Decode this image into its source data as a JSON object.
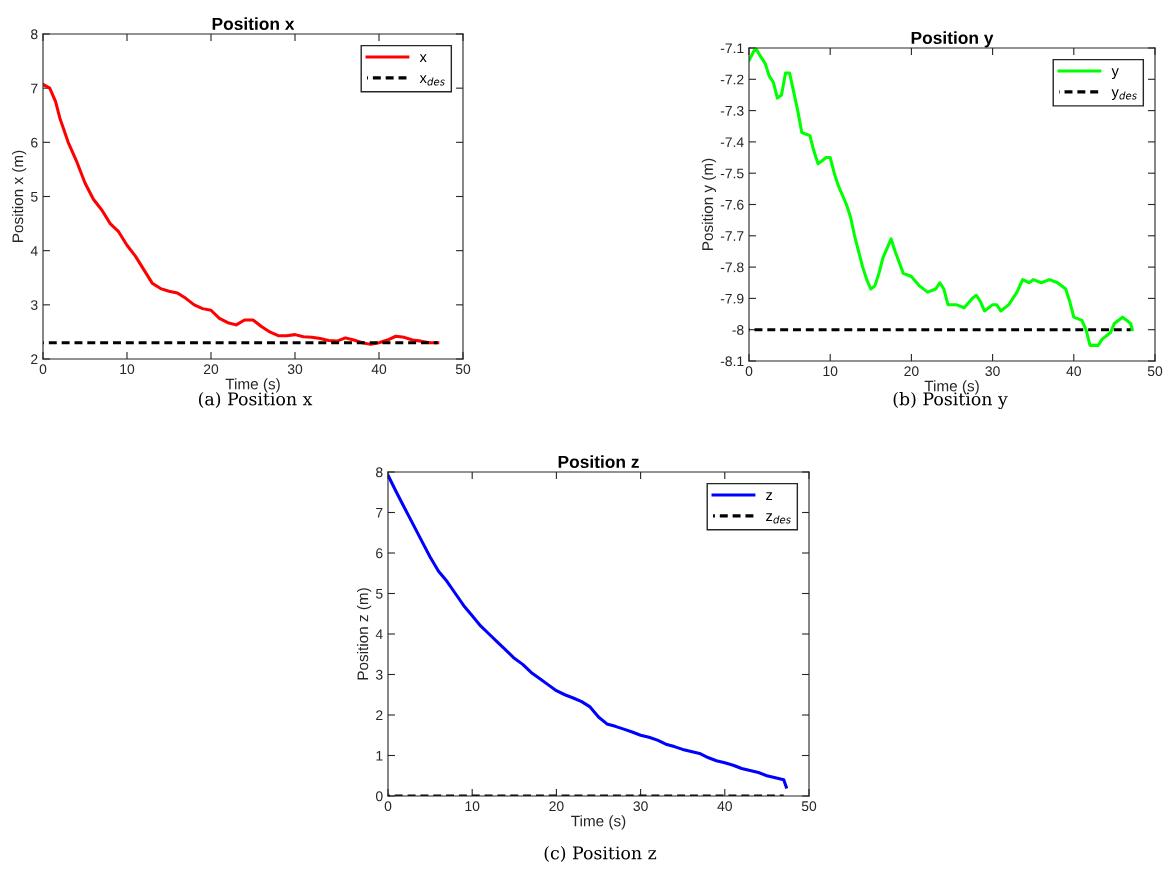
{
  "chart_data": [
    {
      "type": "line",
      "title": "Position x",
      "xlabel": "Time (s)",
      "ylabel": "Position x (m)",
      "xlim": [
        0,
        50
      ],
      "ylim": [
        2,
        8
      ],
      "xticks": [
        0,
        10,
        20,
        30,
        40,
        50
      ],
      "yticks": [
        2,
        3,
        4,
        5,
        6,
        7,
        8
      ],
      "grid": false,
      "legend": "top right",
      "annotations": [
        "(a) Position x"
      ],
      "series": [
        {
          "name": "x",
          "color": "#ff0000",
          "line_style": "solid",
          "x": [
            0,
            0.8,
            1.5,
            2,
            3,
            4,
            5,
            6,
            7,
            8,
            9,
            10,
            11,
            12,
            13,
            14,
            15,
            16,
            17,
            18,
            19,
            20,
            21,
            22,
            23,
            24,
            25,
            26,
            27,
            28,
            29,
            30,
            31,
            32,
            33,
            34,
            35,
            36,
            37,
            38,
            39,
            40,
            41,
            42,
            43,
            44,
            45,
            46,
            47
          ],
          "values": [
            7.07,
            7.0,
            6.75,
            6.45,
            6.0,
            5.65,
            5.25,
            4.95,
            4.75,
            4.5,
            4.35,
            4.1,
            3.9,
            3.65,
            3.4,
            3.3,
            3.25,
            3.22,
            3.12,
            3.0,
            2.93,
            2.9,
            2.75,
            2.67,
            2.63,
            2.72,
            2.72,
            2.6,
            2.5,
            2.43,
            2.43,
            2.45,
            2.41,
            2.4,
            2.38,
            2.34,
            2.33,
            2.39,
            2.35,
            2.3,
            2.27,
            2.3,
            2.35,
            2.42,
            2.4,
            2.35,
            2.33,
            2.3,
            2.3
          ]
        },
        {
          "name": "x$_{des}$",
          "color": "#000000",
          "line_style": "dashed",
          "x": [
            0,
            47
          ],
          "values": [
            2.3,
            2.3
          ]
        }
      ]
    },
    {
      "type": "line",
      "title": "Position y",
      "xlabel": "Time (s)",
      "ylabel": "Position y (m)",
      "xlim": [
        0,
        50
      ],
      "ylim": [
        -8.1,
        -7.1
      ],
      "xticks": [
        0,
        10,
        20,
        30,
        40,
        50
      ],
      "yticks": [
        -8.1,
        -8,
        -7.9,
        -7.8,
        -7.7,
        -7.6,
        -7.5,
        -7.4,
        -7.3,
        -7.2,
        -7.1
      ],
      "grid": false,
      "legend": "top right",
      "annotations": [
        "(b) Position y"
      ],
      "series": [
        {
          "name": "y",
          "color": "#00ff00",
          "line_style": "solid",
          "x": [
            0,
            0.8,
            1.5,
            2,
            2.5,
            3,
            3.5,
            4,
            4.5,
            5,
            5.5,
            6,
            6.5,
            7.5,
            8,
            8.5,
            9,
            9.5,
            10,
            10.5,
            11,
            12,
            12.5,
            13,
            14,
            14.5,
            15,
            15.5,
            16,
            16.5,
            17,
            17.5,
            18,
            19,
            20,
            21,
            22,
            23,
            23.5,
            24,
            24.5,
            25.5,
            26.5,
            27.5,
            28,
            28.5,
            29,
            30,
            30.5,
            31,
            32,
            33,
            33.7,
            34.5,
            35,
            36,
            37,
            38,
            39,
            39.5,
            40,
            41,
            41.5,
            42,
            43,
            43.5,
            44.5,
            45,
            46,
            46.5,
            47,
            47.2
          ],
          "values": [
            -7.14,
            -7.1,
            -7.13,
            -7.15,
            -7.19,
            -7.21,
            -7.26,
            -7.25,
            -7.18,
            -7.18,
            -7.24,
            -7.3,
            -7.37,
            -7.38,
            -7.43,
            -7.47,
            -7.46,
            -7.45,
            -7.45,
            -7.5,
            -7.54,
            -7.6,
            -7.64,
            -7.7,
            -7.8,
            -7.84,
            -7.87,
            -7.86,
            -7.82,
            -7.77,
            -7.74,
            -7.71,
            -7.75,
            -7.82,
            -7.83,
            -7.86,
            -7.88,
            -7.87,
            -7.85,
            -7.87,
            -7.92,
            -7.92,
            -7.93,
            -7.9,
            -7.89,
            -7.91,
            -7.94,
            -7.92,
            -7.92,
            -7.94,
            -7.92,
            -7.88,
            -7.84,
            -7.85,
            -7.84,
            -7.85,
            -7.84,
            -7.85,
            -7.87,
            -7.91,
            -7.96,
            -7.97,
            -8.0,
            -8.05,
            -8.05,
            -8.03,
            -8.01,
            -7.98,
            -7.96,
            -7.97,
            -7.98,
            -8.0
          ]
        },
        {
          "name": "y$_{des}$",
          "color": "#000000",
          "line_style": "dashed",
          "x": [
            0,
            47
          ],
          "values": [
            -8,
            -8
          ]
        }
      ]
    },
    {
      "type": "line",
      "title": "Position z",
      "xlabel": "Time (s)",
      "ylabel": "Position z (m)",
      "xlim": [
        0,
        50
      ],
      "ylim": [
        0,
        8
      ],
      "xticks": [
        0,
        10,
        20,
        30,
        40,
        50
      ],
      "yticks": [
        0,
        1,
        2,
        3,
        4,
        5,
        6,
        7,
        8
      ],
      "grid": false,
      "legend": "top right",
      "annotations": [
        "(c) Position z"
      ],
      "series": [
        {
          "name": "z",
          "color": "#0000ff",
          "line_style": "solid",
          "x": [
            0,
            1,
            2,
            3,
            4,
            5,
            6,
            7,
            8,
            9,
            10,
            11,
            12,
            13,
            14,
            15,
            16,
            17,
            18,
            19,
            20,
            21,
            22,
            23,
            24,
            25,
            26,
            27,
            28,
            29,
            30,
            31,
            32,
            33,
            34,
            35,
            36,
            37,
            38,
            39,
            40,
            41,
            42,
            43,
            44,
            45,
            46,
            47,
            47.3
          ],
          "values": [
            7.92,
            7.5,
            7.1,
            6.7,
            6.3,
            5.9,
            5.55,
            5.3,
            5.0,
            4.7,
            4.45,
            4.2,
            4.0,
            3.8,
            3.6,
            3.4,
            3.25,
            3.05,
            2.9,
            2.75,
            2.6,
            2.5,
            2.42,
            2.33,
            2.2,
            1.95,
            1.78,
            1.72,
            1.65,
            1.58,
            1.5,
            1.45,
            1.38,
            1.28,
            1.22,
            1.15,
            1.1,
            1.05,
            0.95,
            0.87,
            0.82,
            0.76,
            0.68,
            0.63,
            0.58,
            0.5,
            0.45,
            0.4,
            0.22
          ]
        },
        {
          "name": "z$_{des}$",
          "color": "#000000",
          "line_style": "dashed",
          "x": [
            0,
            47
          ],
          "values": [
            0,
            0
          ]
        }
      ]
    }
  ]
}
